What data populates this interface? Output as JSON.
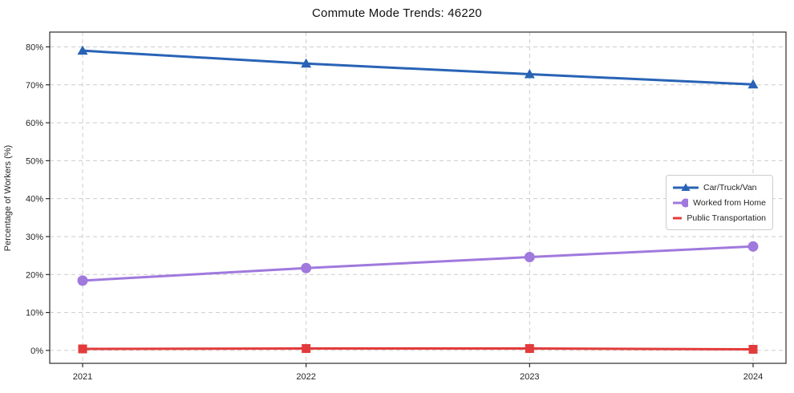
{
  "title": "Commute Mode Trends: 46220",
  "chart_data": {
    "type": "line",
    "title": "Commute Mode Trends: 46220",
    "xlabel": "",
    "ylabel": "Percentage of Workers (%)",
    "categories": [
      "2021",
      "2022",
      "2023",
      "2024"
    ],
    "series": [
      {
        "name": "Car/Truck/Van",
        "color": "#2963b5",
        "marker": "triangle",
        "values": [
          79.0,
          75.6,
          72.8,
          70.1
        ]
      },
      {
        "name": "Worked from Home",
        "color": "#a079dd",
        "marker": "circle",
        "values": [
          18.4,
          21.7,
          24.6,
          27.4
        ]
      },
      {
        "name": "Public Transportation",
        "color": "#e33b3b",
        "marker": "square",
        "values": [
          0.4,
          0.5,
          0.5,
          0.3
        ]
      }
    ],
    "ylim": [
      -3.4,
      83.9
    ],
    "yticks": [
      0,
      10,
      20,
      30,
      40,
      50,
      60,
      70,
      80
    ],
    "ytick_suffix": "%",
    "grid": true,
    "grid_style": "dashed",
    "grid_color": "#cccccc",
    "axis_color": "#2b2b2b",
    "tick_label_color": "#262626",
    "legend_position": "center right"
  }
}
